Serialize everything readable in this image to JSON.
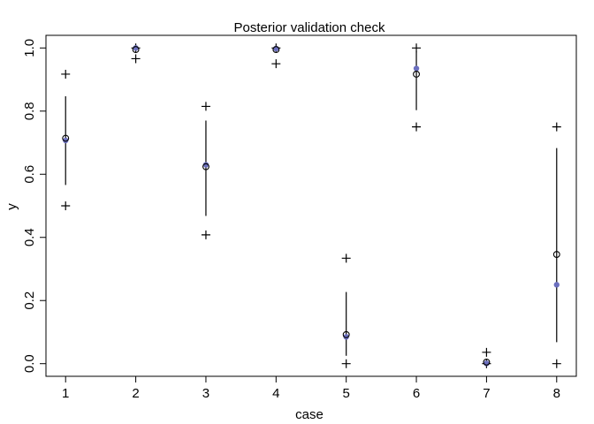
{
  "chart_data": {
    "type": "scatter",
    "title": "Posterior validation check",
    "xlabel": "case",
    "ylabel": "y",
    "xlim": [
      0.72,
      8.28
    ],
    "ylim": [
      -0.04,
      1.04
    ],
    "x_ticks": [
      1,
      2,
      3,
      4,
      5,
      6,
      7,
      8
    ],
    "x_tick_labels": [
      "1",
      "2",
      "3",
      "4",
      "5",
      "6",
      "7",
      "8"
    ],
    "y_ticks": [
      0.0,
      0.2,
      0.4,
      0.6,
      0.8,
      1.0
    ],
    "y_tick_labels": [
      "0.0",
      "0.2",
      "0.4",
      "0.6",
      "0.8",
      "1.0"
    ],
    "grid": false,
    "colors": {
      "predicted": "#6b6fbf",
      "marks": "#000000"
    },
    "cases": [
      {
        "case": 1,
        "observed": 0.714,
        "predicted": 0.707,
        "interval": [
          0.566,
          0.847
        ],
        "pi": [
          0.5,
          0.917
        ]
      },
      {
        "case": 2,
        "observed": 0.995,
        "predicted": 1.0,
        "interval": [
          0.994,
          1.0
        ],
        "pi": [
          0.966,
          1.0
        ]
      },
      {
        "case": 3,
        "observed": 0.624,
        "predicted": 0.63,
        "interval": [
          0.468,
          0.77
        ],
        "pi": [
          0.408,
          0.815
        ]
      },
      {
        "case": 4,
        "observed": 0.995,
        "predicted": 0.998,
        "interval": [
          0.991,
          1.0
        ],
        "pi": [
          0.95,
          1.0
        ]
      },
      {
        "case": 5,
        "observed": 0.092,
        "predicted": 0.085,
        "interval": [
          0.025,
          0.227
        ],
        "pi": [
          0.0,
          0.334
        ]
      },
      {
        "case": 6,
        "observed": 0.917,
        "predicted": 0.935,
        "interval": [
          0.803,
          0.989
        ],
        "pi": [
          0.75,
          1.0
        ]
      },
      {
        "case": 7,
        "observed": 0.005,
        "predicted": 0.001,
        "interval": [
          0.0,
          0.008
        ],
        "pi": [
          0.0,
          0.036
        ]
      },
      {
        "case": 8,
        "observed": 0.346,
        "predicted": 0.25,
        "interval": [
          0.068,
          0.683
        ],
        "pi": [
          0.0,
          0.75
        ]
      }
    ]
  }
}
